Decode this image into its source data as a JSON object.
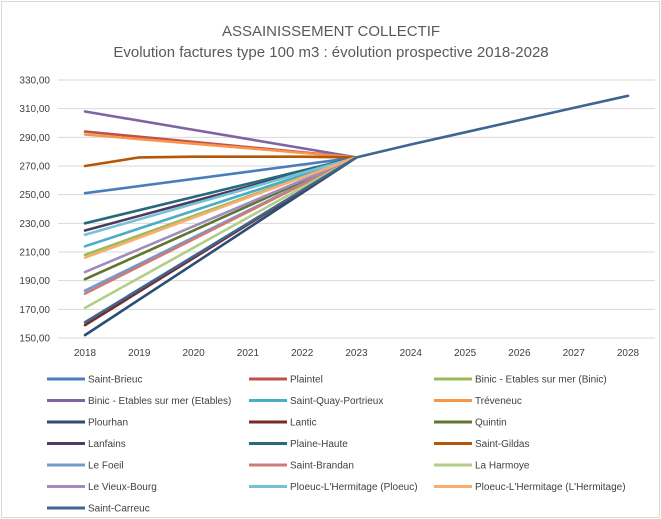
{
  "chart_data": {
    "type": "line",
    "title": "ASSAINISSEMENT COLLECTIF",
    "subtitle": "Evolution factures type 100 m3 : évolution prospective 2018-2028",
    "x": [
      "2018",
      "2019",
      "2020",
      "2021",
      "2022",
      "2023",
      "2024",
      "2025",
      "2026",
      "2027",
      "2028"
    ],
    "ylim": [
      150,
      330
    ],
    "yticks": [
      "150,00",
      "170,00",
      "190,00",
      "210,00",
      "230,00",
      "250,00",
      "270,00",
      "290,00",
      "310,00",
      "330,00"
    ],
    "grid": true,
    "legend_position": "bottom",
    "series": [
      {
        "name": "Saint-Brieuc",
        "color": "#4a7ebb",
        "values": [
          251,
          null,
          null,
          null,
          null,
          276,
          null,
          null,
          null,
          null,
          null
        ]
      },
      {
        "name": "Plaintel",
        "color": "#c0504d",
        "values": [
          294,
          null,
          null,
          null,
          null,
          276,
          null,
          null,
          null,
          null,
          null
        ]
      },
      {
        "name": "Binic - Etables sur mer (Binic)",
        "color": "#9bbb59",
        "values": [
          208,
          null,
          null,
          null,
          null,
          276,
          null,
          null,
          null,
          null,
          null
        ]
      },
      {
        "name": "Binic - Etables sur mer (Etables)",
        "color": "#8064a2",
        "values": [
          308,
          null,
          null,
          null,
          null,
          276,
          null,
          null,
          null,
          null,
          null
        ]
      },
      {
        "name": "Saint-Quay-Portrieux",
        "color": "#4bacc6",
        "values": [
          214,
          null,
          null,
          null,
          null,
          276,
          null,
          null,
          null,
          null,
          null
        ]
      },
      {
        "name": "Tréveneuc",
        "color": "#f79646",
        "values": [
          292,
          null,
          null,
          null,
          null,
          276,
          null,
          null,
          null,
          null,
          null
        ]
      },
      {
        "name": "Plourhan",
        "color": "#2c4d75",
        "values": [
          152,
          null,
          null,
          null,
          null,
          276,
          null,
          null,
          null,
          null,
          null
        ]
      },
      {
        "name": "Lantic",
        "color": "#772c2a",
        "values": [
          159,
          null,
          null,
          null,
          null,
          276,
          null,
          null,
          null,
          null,
          null
        ]
      },
      {
        "name": "Quintin",
        "color": "#5f7530",
        "values": [
          191,
          null,
          null,
          null,
          null,
          276,
          null,
          null,
          null,
          null,
          null
        ]
      },
      {
        "name": "Lanfains",
        "color": "#4d3b62",
        "values": [
          225,
          null,
          null,
          null,
          null,
          276,
          null,
          null,
          null,
          null,
          null
        ]
      },
      {
        "name": "Plaine-Haute",
        "color": "#276a7c",
        "values": [
          230,
          null,
          null,
          null,
          null,
          276,
          null,
          null,
          null,
          null,
          null
        ]
      },
      {
        "name": "Saint-Gildas",
        "color": "#b65708",
        "values": [
          270,
          276,
          276.5,
          276.5,
          276.5,
          276,
          null,
          null,
          null,
          null,
          null
        ]
      },
      {
        "name": "Le Foeil",
        "color": "#729aca",
        "values": [
          183,
          null,
          null,
          null,
          null,
          276,
          null,
          null,
          null,
          null,
          null
        ]
      },
      {
        "name": "Saint-Brandan",
        "color": "#d07a78",
        "values": [
          181,
          null,
          null,
          null,
          null,
          276,
          null,
          null,
          null,
          null,
          null
        ]
      },
      {
        "name": "La Harmoye",
        "color": "#b3cd86",
        "values": [
          171,
          null,
          null,
          null,
          null,
          276,
          null,
          null,
          null,
          null,
          null
        ]
      },
      {
        "name": "Le Vieux-Bourg",
        "color": "#a08cbd",
        "values": [
          196,
          null,
          null,
          null,
          null,
          276,
          null,
          null,
          null,
          null,
          null
        ]
      },
      {
        "name": "Ploeuc-L'Hermitage (Ploeuc)",
        "color": "#73c2d6",
        "values": [
          222,
          null,
          null,
          null,
          null,
          276,
          null,
          null,
          null,
          null,
          null
        ]
      },
      {
        "name": "Ploeuc-L'Hermitage (L'Hermitage)",
        "color": "#f9ae70",
        "values": [
          206,
          null,
          null,
          null,
          null,
          276,
          null,
          null,
          null,
          null,
          null
        ]
      },
      {
        "name": "Saint-Carreuc",
        "color": "#3f6690",
        "values": [
          161,
          null,
          null,
          null,
          null,
          276,
          285,
          293.5,
          302,
          310.5,
          319
        ]
      }
    ]
  }
}
